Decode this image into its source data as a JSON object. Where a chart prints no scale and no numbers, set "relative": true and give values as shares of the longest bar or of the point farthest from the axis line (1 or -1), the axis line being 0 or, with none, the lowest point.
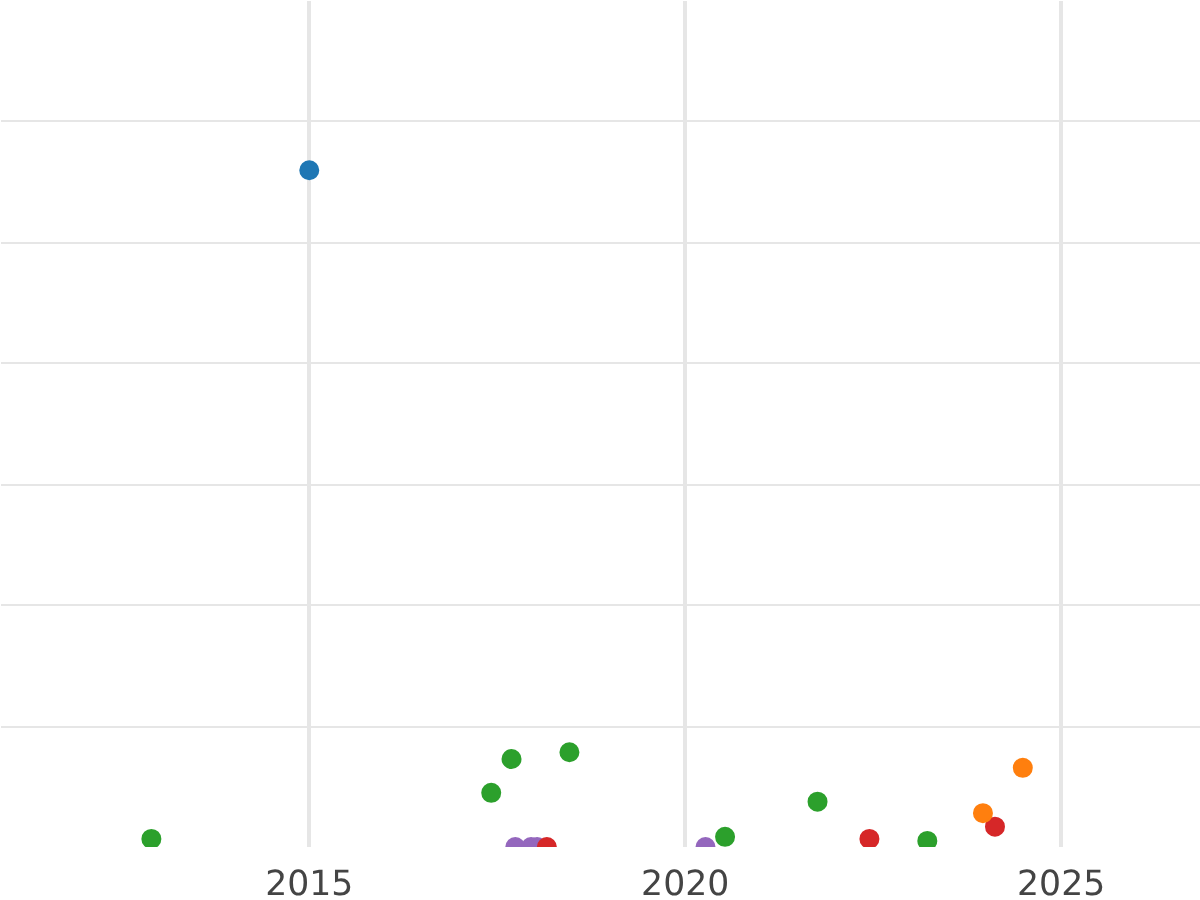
{
  "chart_data": {
    "type": "scatter",
    "relative": true,
    "xlim": [
      2010.9,
      2026.86
    ],
    "xticks": [
      2015,
      2020,
      2025
    ],
    "grid": true,
    "marker": "circle",
    "tick_labels": "x",
    "series": [
      {
        "color": "#1f77b4",
        "x": [
          2015.0
        ],
        "values": [
          1.0
        ]
      },
      {
        "color": "#2ca02c",
        "x": [
          2012.9,
          2017.42,
          2017.69,
          2018.46,
          2020.53,
          2021.76,
          2023.22
        ],
        "values": [
          0.012,
          0.08,
          0.13,
          0.14,
          0.015,
          0.067,
          0.009
        ]
      },
      {
        "color": "#9467bd",
        "x": [
          2017.74,
          2017.95,
          2018.03,
          2020.27
        ],
        "values": [
          0,
          0,
          0,
          0
        ]
      },
      {
        "color": "#d62728",
        "x": [
          2018.16,
          2022.45,
          2024.12
        ],
        "values": [
          0,
          0.012,
          0.03
        ]
      },
      {
        "color": "#ff7f0e",
        "x": [
          2023.96,
          2024.49
        ],
        "values": [
          0.05,
          0.117
        ]
      }
    ]
  }
}
